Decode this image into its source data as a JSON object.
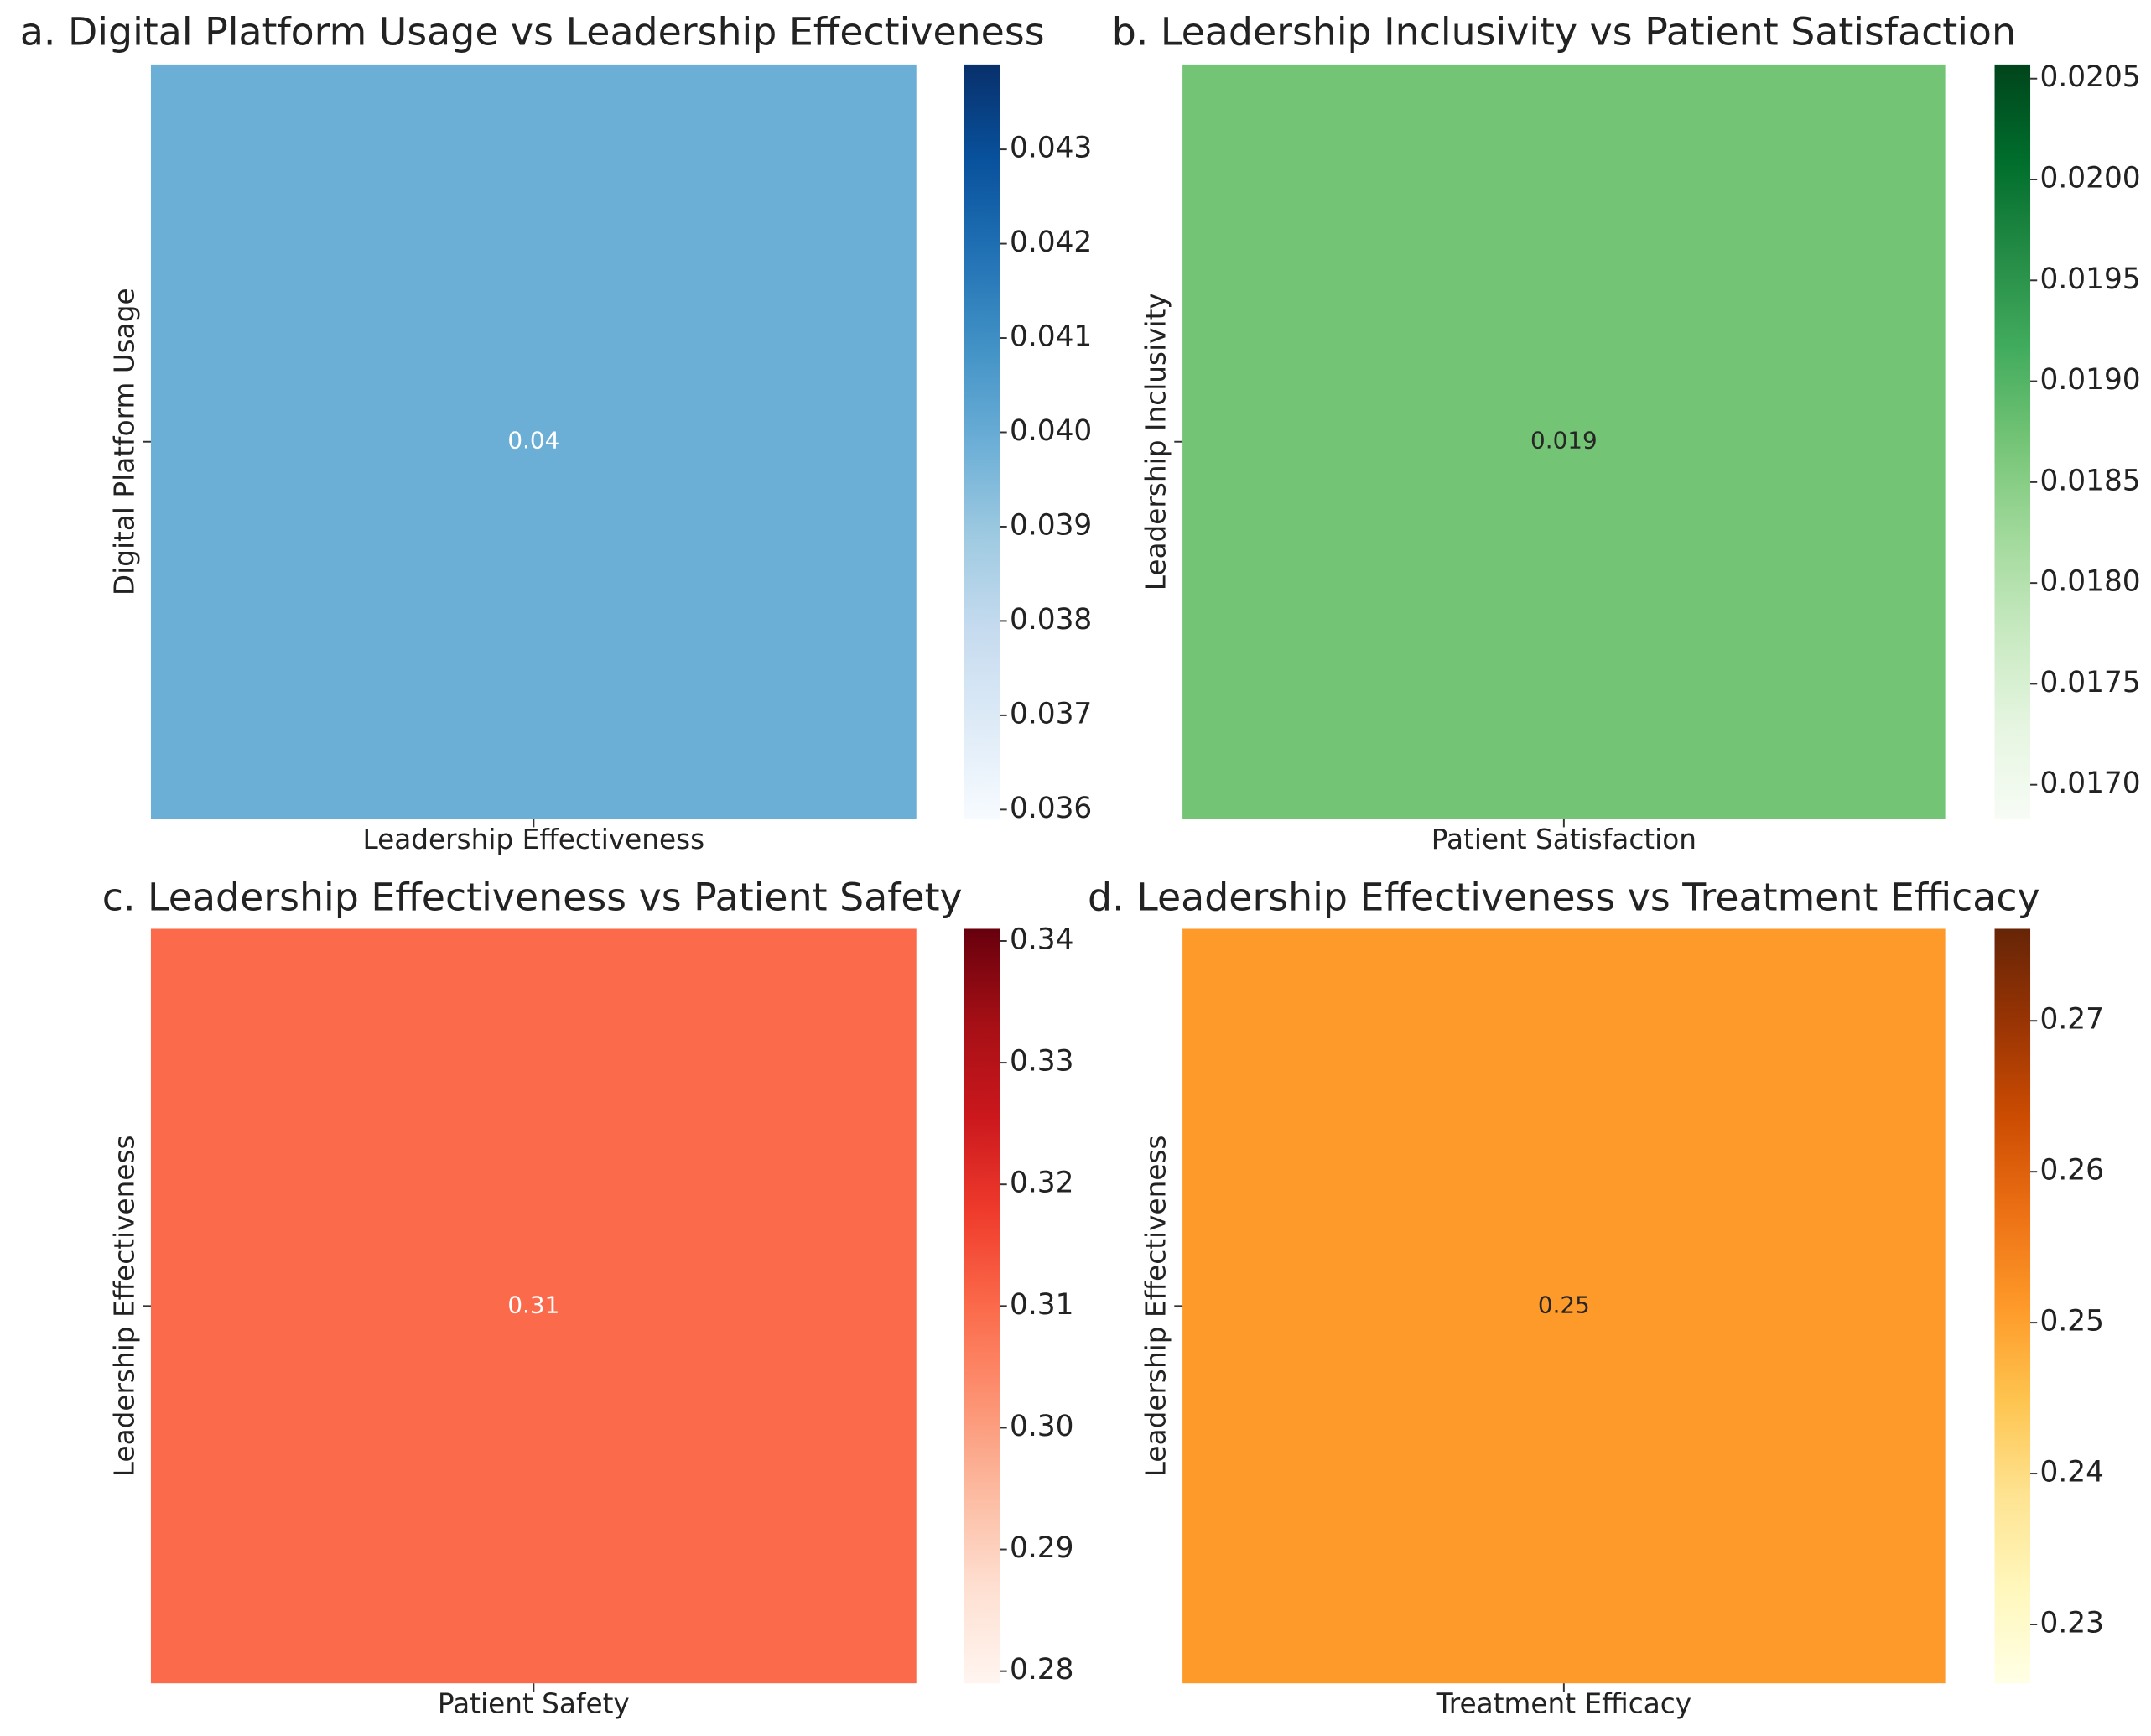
{
  "chart_data": [
    {
      "type": "heatmap",
      "title": "a. Digital Platform Usage vs Leadership Effectiveness",
      "x_categories": [
        "Leadership Effectiveness"
      ],
      "y_categories": [
        "Digital Platform Usage"
      ],
      "values": [
        [
          0.0399
        ]
      ],
      "value_labels": [
        [
          "0.04"
        ]
      ],
      "colormap": [
        "#f7fbff",
        "#deebf7",
        "#c6dbef",
        "#9ecae1",
        "#6baed6",
        "#4292c6",
        "#2171b5",
        "#08519c",
        "#08306b"
      ],
      "clim": [
        0.0359,
        0.0439
      ],
      "cticks": [
        0.036,
        0.037,
        0.038,
        0.039,
        {
          "value": 0.04,
          "label": "0.040"
        },
        0.041,
        0.042,
        0.043
      ]
    },
    {
      "type": "heatmap",
      "title": "b. Leadership Inclusivity vs Patient Satisfaction",
      "x_categories": [
        "Patient Satisfaction"
      ],
      "y_categories": [
        "Leadership Inclusivity"
      ],
      "values": [
        [
          0.0187
        ]
      ],
      "value_labels": [
        [
          "0.019"
        ]
      ],
      "colormap": [
        "#f7fcf5",
        "#e5f5e0",
        "#c7e9c0",
        "#a1d99b",
        "#74c476",
        "#41ab5d",
        "#238b45",
        "#006d2c",
        "#00441b"
      ],
      "clim": [
        0.01683,
        0.02057
      ],
      "cticks": [
        {
          "value": 0.017,
          "label": "0.0170"
        },
        0.0175,
        {
          "value": 0.018,
          "label": "0.0180"
        },
        0.0185,
        {
          "value": 0.019,
          "label": "0.0190"
        },
        0.0195,
        {
          "value": 0.02,
          "label": "0.0200"
        },
        0.0205
      ]
    },
    {
      "type": "heatmap",
      "title": "c. Leadership Effectiveness vs Patient Safety",
      "x_categories": [
        "Patient Safety"
      ],
      "y_categories": [
        "Leadership Effectiveness"
      ],
      "values": [
        [
          0.31
        ]
      ],
      "value_labels": [
        [
          "0.31"
        ]
      ],
      "colormap": [
        "#fff5f0",
        "#fee0d2",
        "#fcbba1",
        "#fc9272",
        "#fb6a4a",
        "#ef3b2c",
        "#cb181d",
        "#a50f15",
        "#67000d"
      ],
      "clim": [
        0.279,
        0.341
      ],
      "cticks": [
        0.28,
        0.29,
        {
          "value": 0.3,
          "label": "0.30"
        },
        0.31,
        0.32,
        0.33,
        0.34
      ]
    },
    {
      "type": "heatmap",
      "title": "d. Leadership Effectiveness vs Treatment Efficacy",
      "x_categories": [
        "Treatment Efficacy"
      ],
      "y_categories": [
        "Leadership Effectiveness"
      ],
      "values": [
        [
          0.251
        ]
      ],
      "value_labels": [
        [
          "0.25"
        ]
      ],
      "colormap": [
        "#ffffe5",
        "#fff7bc",
        "#fee391",
        "#fec44f",
        "#fe9929",
        "#ec7014",
        "#cc4c02",
        "#993404",
        "#662506"
      ],
      "clim": [
        0.2261,
        0.2761
      ],
      "cticks": [
        0.23,
        0.24,
        0.25,
        0.26,
        0.27
      ]
    }
  ]
}
